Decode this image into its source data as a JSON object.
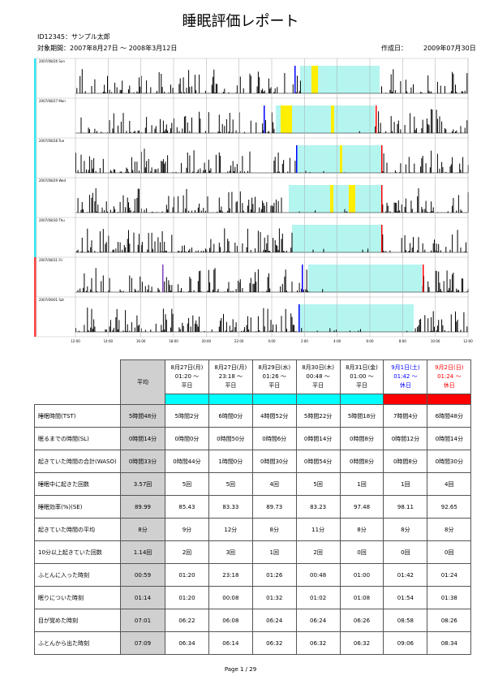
{
  "header": {
    "title": "睡眠評価レポート",
    "id": "ID12345：サンプル太郎",
    "period": "対象期間：2007年8月27日 ～ 2008年3月12日",
    "created_label": "作成日：",
    "created_date": "2009年07月30日"
  },
  "charts": {
    "panels": [
      "2007/08/26 Sun",
      "2007/08/27 Mon",
      "2007/08/28 Tue",
      "2007/08/29 Wed",
      "2007/08/30 Thu",
      "2007/08/31 Fri",
      "2007/09/01 Sat"
    ],
    "time_labels": [
      "12:00",
      "14:00",
      "16:00",
      "18:00",
      "20:00",
      "22:00",
      "0:00",
      "2:00",
      "4:00",
      "6:00",
      "8:00",
      "10:00",
      "12:00"
    ]
  },
  "table": {
    "avg_header": "平均",
    "columns": [
      {
        "date": "8月27日(月)",
        "time": "01:20 ～",
        "kind": "平日",
        "color": "#000000",
        "band_color": "#00ffff"
      },
      {
        "date": "8月27日(月)",
        "time": "23:18 ～",
        "kind": "平日",
        "color": "#000000",
        "band_color": "#00ffff"
      },
      {
        "date": "8月29日(水)",
        "time": "01:26 ～",
        "kind": "平日",
        "color": "#000000",
        "band_color": "#00ffff"
      },
      {
        "date": "8月30日(木)",
        "time": "00:48 ～",
        "kind": "平日",
        "color": "#000000",
        "band_color": "#00ffff"
      },
      {
        "date": "8月31日(金)",
        "time": "01:00 ～",
        "kind": "平日",
        "color": "#000000",
        "band_color": "#00ffff"
      },
      {
        "date": "9月1日(土)",
        "time": "01:42 ～",
        "kind": "休日",
        "color": "#0000ff",
        "band_color": "#ff0000"
      },
      {
        "date": "9月2日(日)",
        "time": "01:24 ～",
        "kind": "休日",
        "color": "#ff0000",
        "band_color": "#ff0000"
      }
    ],
    "rows": [
      {
        "label": "睡眠時間(TST)",
        "avg": "5時間48分",
        "values": [
          "5時間2分",
          "6時間0分",
          "4時間52分",
          "5時間22分",
          "5時間18分",
          "7時間4分",
          "6時間48分"
        ]
      },
      {
        "label": "眠るまでの時間(SL)",
        "avg": "0時間14分",
        "values": [
          "0時間0分",
          "0時間50分",
          "0時間6分",
          "0時間14分",
          "0時間8分",
          "0時間12分",
          "0時間14分"
        ]
      },
      {
        "label": "起きていた時間の合計(WASO)",
        "avg": "0時間33分",
        "values": [
          "0時間44分",
          "1時間0分",
          "0時間30分",
          "0時間54分",
          "0時間8分",
          "0時間8分",
          "0時間30分"
        ]
      },
      {
        "label": "睡眠中に起きた回数",
        "avg": "3.57回",
        "values": [
          "5回",
          "5回",
          "4回",
          "5回",
          "1回",
          "1回",
          "4回"
        ]
      },
      {
        "label": "睡眠効率(%)(SE)",
        "avg": "89.99",
        "values": [
          "85.43",
          "83.33",
          "89.73",
          "83.23",
          "97.48",
          "98.11",
          "92.65"
        ]
      },
      {
        "label": "起きていた時間の平均",
        "avg": "8分",
        "values": [
          "9分",
          "12分",
          "8分",
          "11分",
          "8分",
          "8分",
          "8分"
        ]
      },
      {
        "label": "10分以上起きていた回数",
        "avg": "1.14回",
        "values": [
          "2回",
          "3回",
          "1回",
          "2回",
          "0回",
          "0回",
          "0回"
        ]
      },
      {
        "label": "ふとんに入った時刻",
        "avg": "00:59",
        "values": [
          "01:20",
          "23:18",
          "01:26",
          "00:48",
          "01:00",
          "01:42",
          "01:24"
        ]
      },
      {
        "label": "眠りについた時刻",
        "avg": "01:14",
        "values": [
          "01:20",
          "00:08",
          "01:32",
          "01:02",
          "01:08",
          "01:54",
          "01:38"
        ]
      },
      {
        "label": "目が覚めた時刻",
        "avg": "07:01",
        "values": [
          "06:22",
          "06:08",
          "06:24",
          "06:24",
          "06:26",
          "08:58",
          "08:26"
        ]
      },
      {
        "label": "ふとんから出た時刻",
        "avg": "07:09",
        "values": [
          "06:34",
          "06:14",
          "06:32",
          "06:32",
          "06:32",
          "09:06",
          "08:34"
        ]
      }
    ]
  },
  "footer": "Page 1 / 29"
}
